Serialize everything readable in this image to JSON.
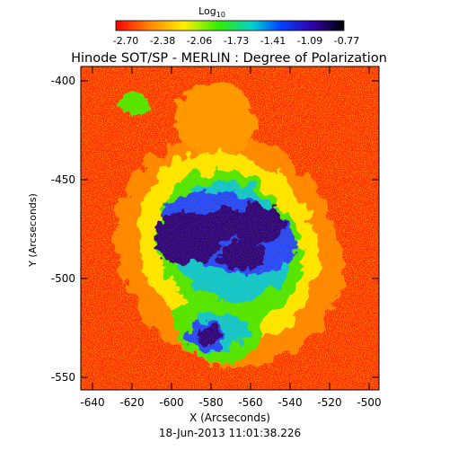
{
  "colorbar": {
    "label_base": "Log",
    "label_sub": "10",
    "tick_labels": [
      "-2.70",
      "-2.38",
      "-2.06",
      "-1.73",
      "-1.41",
      "-1.09",
      "-0.77"
    ],
    "colors": [
      "#ff0000",
      "#ff8800",
      "#ffee00",
      "#33ee00",
      "#00d0d0",
      "#0044ff",
      "#3300aa",
      "#000000"
    ]
  },
  "title": "Hinode SOT/SP - MERLIN : Degree of Polarization",
  "x_axis": {
    "label": "X (Arcseconds)",
    "ticks": [
      "-640",
      "-620",
      "-600",
      "-580",
      "-560",
      "-540",
      "-520",
      "-500"
    ]
  },
  "y_axis": {
    "label": "Y (Arcseconds)",
    "ticks": [
      "-400",
      "-450",
      "-500",
      "-550"
    ]
  },
  "timestamp": "18-Jun-2013 11:01:38.226",
  "image_colors": {
    "background": "#ff2200",
    "low": "#ff8800",
    "mid": "#ffee00",
    "green": "#44ee00",
    "cyan": "#00ccdd",
    "blue": "#2244ff",
    "dark": "#2a0080"
  }
}
